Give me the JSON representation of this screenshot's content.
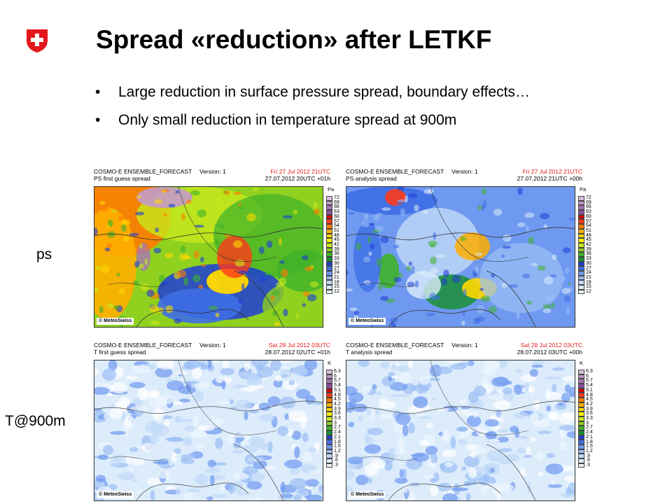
{
  "title": "Spread «reduction» after LETKF",
  "bullets": [
    "Large reduction in surface pressure spread, boundary effects…",
    "Only small reduction in temperature spread at 900m"
  ],
  "row_labels": {
    "ps": "ps",
    "t900": "T@900m"
  },
  "maps": {
    "ps_fg": {
      "model": "COSMO-E ENSEMBLE_FORECAST",
      "version": "Version: 1",
      "field": "PS first guess spread",
      "valid": "Fri 27 Jul 2012 21UTC",
      "run": "27.07.2012 20UTC +01h",
      "unit": "Pa",
      "credit": "© MeteoSwiss"
    },
    "ps_an": {
      "model": "COSMO-E ENSEMBLE_FORECAST",
      "version": "Version: 1",
      "field": "PS analysis spread",
      "valid": "Fri 27 Jul 2012 21UTC",
      "run": "27.07.2012 21UTC +00h",
      "unit": "Pa",
      "credit": "© MeteoSwiss"
    },
    "t_fg": {
      "model": "COSMO-E ENSEMBLE_FORECAST",
      "version": "Version: 1",
      "field": "T first guess spread",
      "valid": "Sat 28 Jul 2012 03UTC",
      "run": "28.07.2012 02UTC +01h",
      "unit": "K",
      "credit": "© MeteoSwiss"
    },
    "t_an": {
      "model": "COSMO-E ENSEMBLE_FORECAST",
      "version": "Version: 1",
      "field": "T analysis spread",
      "valid": "Sat 28 Jul 2012 03UTC",
      "run": "28.07.2012 03UTC +00h",
      "unit": "K",
      "credit": "© MeteoSwiss"
    }
  },
  "ps_scale": [
    "72",
    "69",
    "66",
    "63",
    "60",
    "57",
    "54",
    "51",
    "48",
    "45",
    "42",
    "39",
    "36",
    "33",
    "30",
    "27",
    "24",
    "21",
    "18",
    "15",
    "12"
  ],
  "t_scale": [
    "6.3",
    "6",
    "5.7",
    "5.4",
    "5.1",
    "4.8",
    "4.5",
    "4.2",
    "3.9",
    "3.6",
    "3.3",
    "3",
    "2.7",
    "2.4",
    "2.1",
    "1.8",
    "1.5",
    "1.2",
    ".9",
    ".6",
    ".3"
  ],
  "scale_colors": [
    "#d7bfdc",
    "#c39ac8",
    "#a875b4",
    "#8e4f9e",
    "#d60000",
    "#ff3a1a",
    "#ff7a00",
    "#ffae00",
    "#ffd800",
    "#fff200",
    "#c8e81c",
    "#8fd11e",
    "#3fb22a",
    "#1a8f35",
    "#1e3dd6",
    "#3e6ee6",
    "#6f99f0",
    "#9bbff5",
    "#c1daf8",
    "#dcecfb",
    "#eef7fd"
  ]
}
